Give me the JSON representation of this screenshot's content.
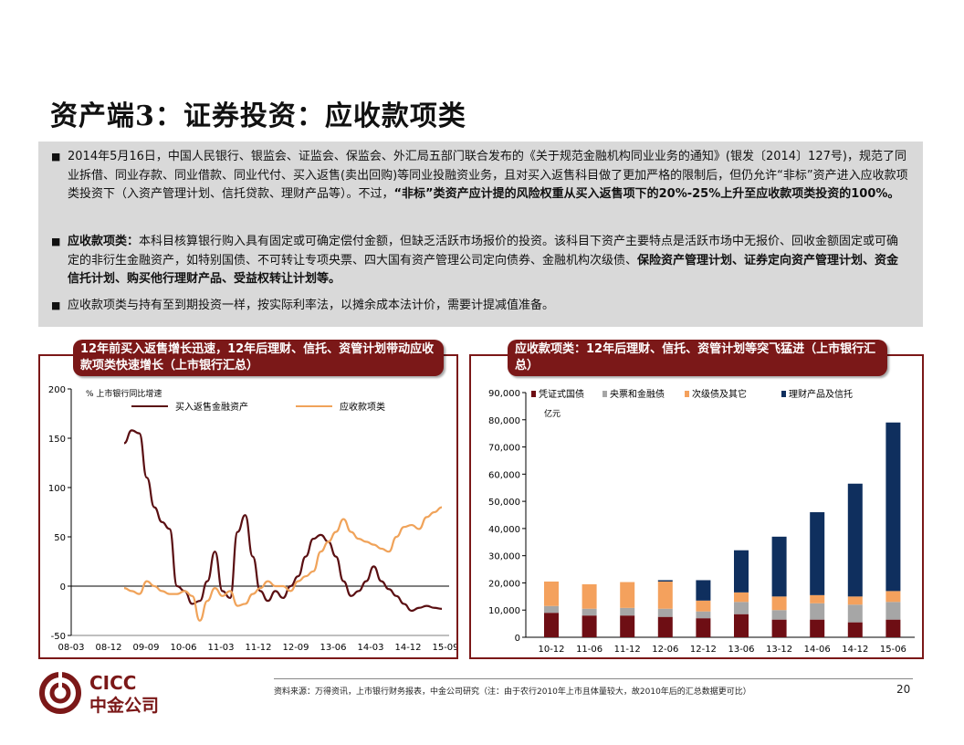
{
  "title": "资产端3：证券投资：应收款项类",
  "bullets": {
    "b1_a": "2014年5月16日，中国人民银行、银监会、证监会、保监会、外汇局五部门联合发布的《关于规范金融机构同业业务的通知》(银发〔2014〕127号)，规范了同业拆借、同业存款、同业借款、同业代付、买入返售(卖出回购)等同业投融资业务，且对买入返售科目做了更加严格的限制后，但仍允许“非标”资产进入应收款项类投资下（入资产管理计划、信托贷款、理财产品等）。不过，",
    "b1_b": "“非标”类资产应计提的风险权重从买入返售项下的20%-25%上升至应收款项类投资的100%。",
    "b2_head": "应收款项类：",
    "b2_a": "本科目核算银行购入具有固定或可确定偿付金额，但缺乏活跃市场报价的投资。该科目下资产主要特点是活跃市场中无报价、回收金额固定或可确定的非衍生金融资产，如特别国债、不可转让专项央票、四大国有资产管理公司定向债券、金融机构次级债、",
    "b2_b": "保险资产管理计划、证券定向资产管理计划、资金信托计划、购买他行理财产品、受益权转让计划等。",
    "b3": "应收款项类与持有至到期投资一样，按实际利率法，以摊余成本法计价，需要计提减值准备。"
  },
  "left_panel": {
    "banner": "12年前买入返售增长迅速，12年后理财、信托、资管计划带动应收款项类快速增长（上市银行汇总）"
  },
  "right_panel": {
    "banner": "应收款项类：12年后理财、信托、资管计划等突飞猛进（上市银行汇总）"
  },
  "footer": {
    "source": "资料来源：万得资讯，上市银行财务报表，中金公司研究（注：由于农行2010年上市且体量较大，故2010年后的汇总数据更可比）",
    "page": "20",
    "logo_en": "CICC",
    "logo_cn": "中金公司"
  },
  "colors": {
    "accent": "#7b1818",
    "line1": "#5a0f12",
    "line2": "#f0a35a",
    "s1": "#6e0e14",
    "s2": "#a6a6a6",
    "s3": "#f4a15d",
    "s4": "#0f2f5e"
  },
  "chart_data": [
    {
      "type": "line",
      "unit_label": "% 上市银行同比增速",
      "ylim": [
        -50,
        200
      ],
      "yticks": [
        -50,
        0,
        50,
        100,
        150,
        200
      ],
      "x_ticks": [
        "08-03",
        "08-12",
        "09-09",
        "10-06",
        "11-03",
        "11-12",
        "12-09",
        "13-06",
        "14-03",
        "14-12",
        "15-09"
      ],
      "series": [
        {
          "name": "买入返售金融资产",
          "color": "#5a0f12",
          "values": [
            145,
            158,
            155,
            110,
            80,
            65,
            58,
            0,
            -5,
            -18,
            -15,
            5,
            35,
            -5,
            -12,
            55,
            72,
            30,
            -5,
            -15,
            -5,
            -12,
            0,
            10,
            30,
            48,
            52,
            45,
            30,
            5,
            -10,
            -5,
            5,
            20,
            5,
            -3,
            -10,
            -18,
            -25,
            -22,
            -20,
            -22,
            -23
          ]
        },
        {
          "name": "应收款项类",
          "color": "#f0a35a",
          "values": [
            -2,
            -5,
            -8,
            5,
            0,
            -5,
            -8,
            -8,
            -5,
            -10,
            -35,
            -15,
            -2,
            -10,
            -5,
            -20,
            -18,
            -8,
            -2,
            5,
            0,
            0,
            -5,
            5,
            10,
            15,
            35,
            45,
            55,
            68,
            55,
            48,
            45,
            42,
            38,
            35,
            50,
            60,
            62,
            58,
            70,
            75,
            80
          ]
        }
      ]
    },
    {
      "type": "bar",
      "stacked": true,
      "unit": "亿元",
      "ylim": [
        0,
        90000
      ],
      "yticks": [
        "0",
        "10,000",
        "20,000",
        "30,000",
        "40,000",
        "50,000",
        "60,000",
        "70,000",
        "80,000",
        "90,000"
      ],
      "categories": [
        "10-12",
        "11-06",
        "11-12",
        "12-06",
        "12-12",
        "13-06",
        "13-12",
        "14-06",
        "14-12",
        "15-06"
      ],
      "series": [
        {
          "name": "凭证式国债",
          "color": "#6e0e14",
          "values": [
            9000,
            8000,
            8000,
            7500,
            7000,
            8500,
            6500,
            6500,
            5500,
            6500
          ]
        },
        {
          "name": "央票和金融债",
          "color": "#a6a6a6",
          "values": [
            2500,
            2500,
            2800,
            3000,
            2500,
            4500,
            3500,
            6000,
            6500,
            6500
          ]
        },
        {
          "name": "次级债及其它",
          "color": "#f4a15d",
          "values": [
            9000,
            9000,
            9500,
            10000,
            4000,
            3500,
            5000,
            3000,
            3000,
            4000
          ]
        },
        {
          "name": "理财产品及信托",
          "color": "#0f2f5e",
          "values": [
            0,
            0,
            0,
            500,
            7500,
            15500,
            22000,
            30500,
            41500,
            62000
          ]
        }
      ]
    }
  ]
}
